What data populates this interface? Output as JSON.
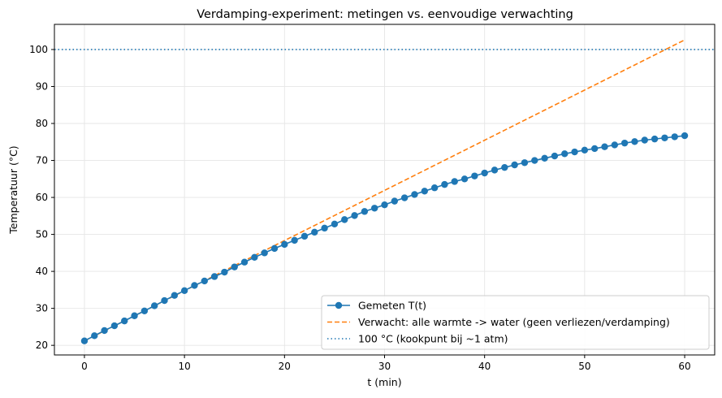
{
  "chart_data": {
    "type": "line",
    "title": "Verdamping-experiment: metingen vs. eenvoudige verwachting",
    "xlabel": "t (min)",
    "ylabel": "Temperatuur (°C)",
    "xlim": [
      -3,
      63
    ],
    "ylim": [
      17.4,
      106.8
    ],
    "xticks": [
      0,
      10,
      20,
      30,
      40,
      50,
      60
    ],
    "yticks": [
      20,
      30,
      40,
      50,
      60,
      70,
      80,
      90,
      100
    ],
    "grid": true,
    "legend_position": "lower-right",
    "series": [
      {
        "name": "Gemeten T(t)",
        "style": "line-with-markers",
        "color": "#1f77b4",
        "x": [
          0,
          1,
          2,
          3,
          4,
          5,
          6,
          7,
          8,
          9,
          10,
          11,
          12,
          13,
          14,
          15,
          16,
          17,
          18,
          19,
          20,
          21,
          22,
          23,
          24,
          25,
          26,
          27,
          28,
          29,
          30,
          31,
          32,
          33,
          34,
          35,
          36,
          37,
          38,
          39,
          40,
          41,
          42,
          43,
          44,
          45,
          46,
          47,
          48,
          49,
          50,
          51,
          52,
          53,
          54,
          55,
          56,
          57,
          58,
          59,
          60
        ],
        "y": [
          21.2,
          22.6,
          24.0,
          25.3,
          26.6,
          28.0,
          29.3,
          30.7,
          32.1,
          33.5,
          34.8,
          36.2,
          37.4,
          38.6,
          39.8,
          41.2,
          42.5,
          43.8,
          45.0,
          46.2,
          47.3,
          48.4,
          49.5,
          50.6,
          51.7,
          52.8,
          54.0,
          55.1,
          56.2,
          57.1,
          58.0,
          59.0,
          59.9,
          60.8,
          61.7,
          62.6,
          63.5,
          64.3,
          65.0,
          65.8,
          66.6,
          67.4,
          68.1,
          68.8,
          69.4,
          70.0,
          70.6,
          71.2,
          71.8,
          72.3,
          72.8,
          73.2,
          73.7,
          74.2,
          74.7,
          75.1,
          75.5,
          75.8,
          76.1,
          76.4,
          76.7
        ]
      },
      {
        "name": "Verwacht: alle warmte -> water (geen verliezen/verdamping)",
        "style": "dashed",
        "color": "#ff7f0e",
        "x": [
          0,
          60
        ],
        "y": [
          21.2,
          102.6
        ]
      },
      {
        "name": "100 °C (kookpunt bij ~1 atm)",
        "style": "dotted-horizontal",
        "color": "#1f77b4",
        "y": 100
      }
    ]
  }
}
